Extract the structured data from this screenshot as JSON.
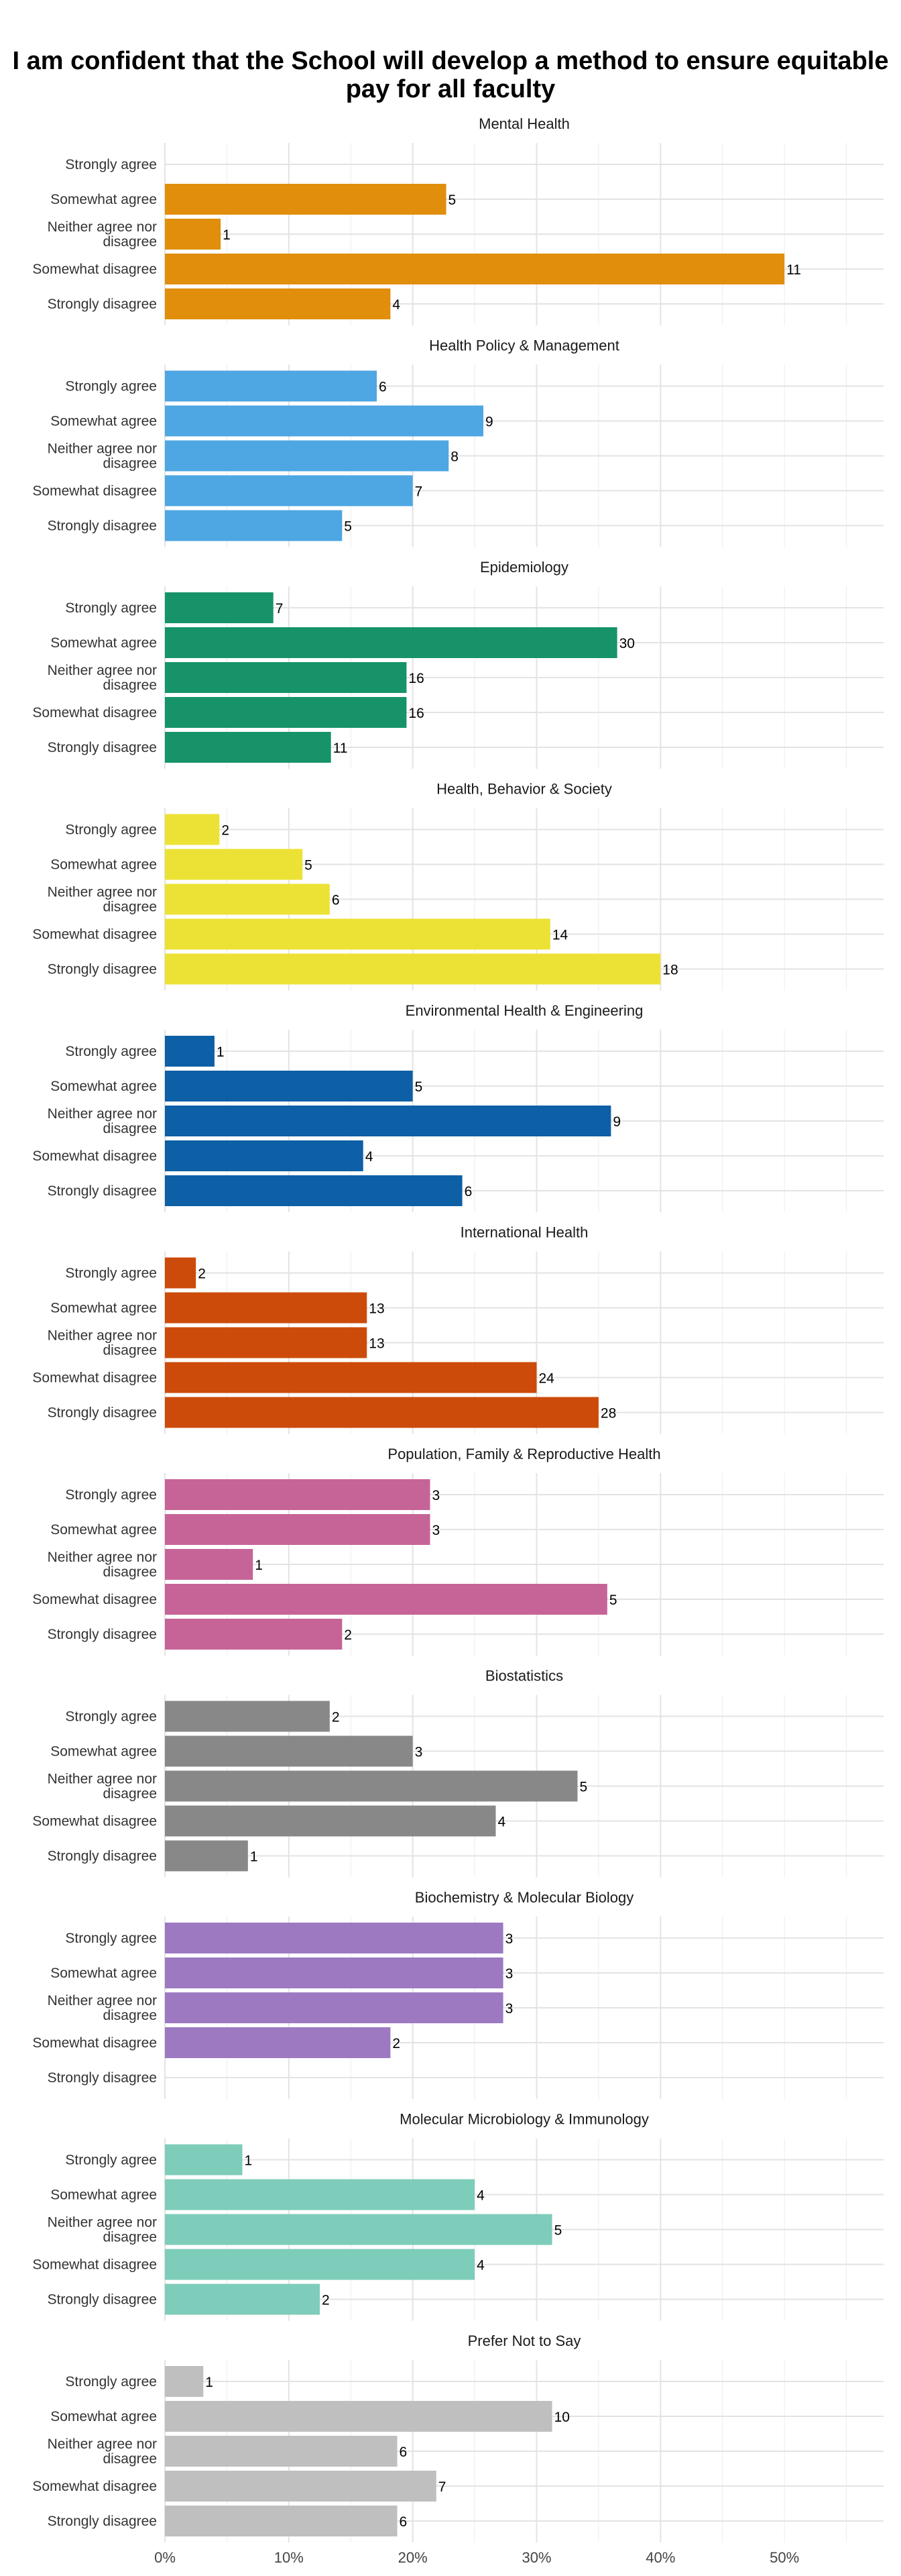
{
  "title": "I am confident that the School will develop a method to ensure equitable pay for all faculty",
  "chart_data": {
    "type": "bar",
    "orientation": "horizontal",
    "title": "I am confident that the School will develop a method to ensure equitable pay for all faculty",
    "xlabel": "",
    "ylabel": "",
    "xlim": [
      0,
      0.58
    ],
    "x_ticks": [
      "0%",
      "10%",
      "20%",
      "30%",
      "40%",
      "50%"
    ],
    "grid": true,
    "categories": [
      "Strongly agree",
      "Somewhat agree",
      "Neither agree nor disagree",
      "Somewhat disagree",
      "Strongly disagree"
    ],
    "panels": [
      {
        "name": "Mental Health",
        "color": "#E08E0B",
        "pct": [
          0,
          0.227,
          0.045,
          0.5,
          0.182
        ],
        "counts": [
          null,
          5,
          1,
          11,
          4
        ]
      },
      {
        "name": "Health Policy & Management",
        "color": "#4EA6E3",
        "pct": [
          0.171,
          0.257,
          0.229,
          0.2,
          0.143
        ],
        "counts": [
          6,
          9,
          8,
          7,
          5
        ]
      },
      {
        "name": "Epidemiology",
        "color": "#169369",
        "pct": [
          0.0875,
          0.365,
          0.195,
          0.195,
          0.134
        ],
        "counts": [
          7,
          30,
          16,
          16,
          11
        ]
      },
      {
        "name": "Health, Behavior & Society",
        "color": "#ECE235",
        "pct": [
          0.044,
          0.111,
          0.133,
          0.311,
          0.4
        ],
        "counts": [
          2,
          5,
          6,
          14,
          18
        ]
      },
      {
        "name": "Environmental Health & Engineering",
        "color": "#0D5FA6",
        "pct": [
          0.04,
          0.2,
          0.36,
          0.16,
          0.24
        ],
        "counts": [
          1,
          5,
          9,
          4,
          6
        ]
      },
      {
        "name": "International Health",
        "color": "#CC4B0A",
        "pct": [
          0.025,
          0.163,
          0.163,
          0.3,
          0.35
        ],
        "counts": [
          2,
          13,
          13,
          24,
          28
        ]
      },
      {
        "name": "Population, Family & Reproductive Health",
        "color": "#C66498",
        "pct": [
          0.214,
          0.214,
          0.071,
          0.357,
          0.143
        ],
        "counts": [
          3,
          3,
          1,
          5,
          2
        ]
      },
      {
        "name": "Biostatistics",
        "color": "#888888",
        "pct": [
          0.133,
          0.2,
          0.333,
          0.267,
          0.067
        ],
        "counts": [
          2,
          3,
          5,
          4,
          1
        ]
      },
      {
        "name": "Biochemistry & Molecular Biology",
        "color": "#9C79C1",
        "pct": [
          0.273,
          0.273,
          0.273,
          0.182,
          0
        ],
        "counts": [
          3,
          3,
          3,
          2,
          null
        ]
      },
      {
        "name": "Molecular Microbiology & Immunology",
        "color": "#7ECCBA",
        "pct": [
          0.0625,
          0.25,
          0.3125,
          0.25,
          0.125
        ],
        "counts": [
          1,
          4,
          5,
          4,
          2
        ]
      },
      {
        "name": "Prefer Not to Say",
        "color": "#BFBFBF",
        "pct": [
          0.031,
          0.3125,
          0.1875,
          0.219,
          0.1875
        ],
        "counts": [
          1,
          10,
          6,
          7,
          6
        ]
      }
    ]
  }
}
